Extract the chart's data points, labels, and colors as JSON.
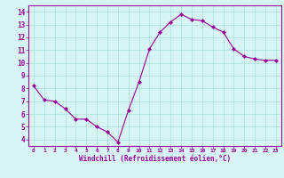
{
  "x": [
    0,
    1,
    2,
    3,
    4,
    5,
    6,
    7,
    8,
    9,
    10,
    11,
    12,
    13,
    14,
    15,
    16,
    17,
    18,
    19,
    20,
    21,
    22,
    23
  ],
  "y": [
    8.2,
    7.1,
    7.0,
    6.4,
    5.6,
    5.6,
    5.0,
    4.6,
    3.8,
    6.3,
    8.5,
    11.1,
    12.4,
    13.2,
    13.8,
    13.4,
    13.3,
    12.8,
    12.4,
    11.1,
    10.5,
    10.3,
    10.2,
    10.2
  ],
  "xlim": [
    -0.5,
    23.5
  ],
  "ylim": [
    3.5,
    14.5
  ],
  "yticks": [
    4,
    5,
    6,
    7,
    8,
    9,
    10,
    11,
    12,
    13,
    14
  ],
  "xticks": [
    0,
    1,
    2,
    3,
    4,
    5,
    6,
    7,
    8,
    9,
    10,
    11,
    12,
    13,
    14,
    15,
    16,
    17,
    18,
    19,
    20,
    21,
    22,
    23
  ],
  "xlabel": "Windchill (Refroidissement éolien,°C)",
  "line_color": "#990099",
  "marker_color": "#990099",
  "bg_color": "#d8f5f5",
  "grid_color": "#aadddd",
  "axis_label_color": "#990099",
  "tick_label_color": "#990099",
  "border_color": "#990099"
}
